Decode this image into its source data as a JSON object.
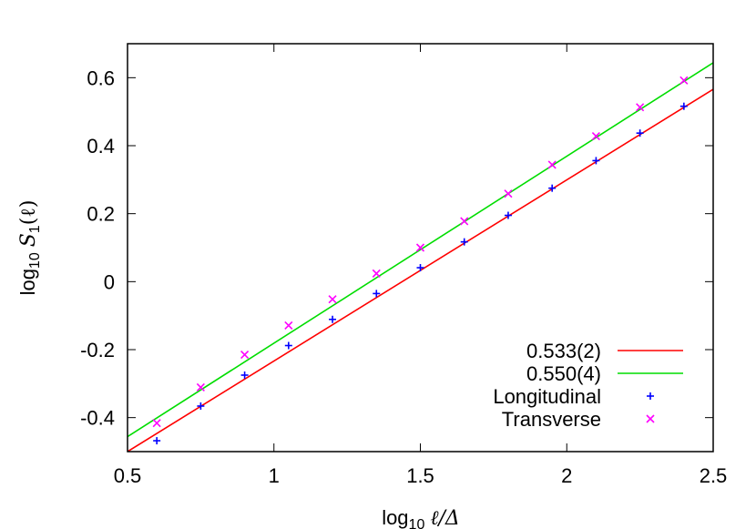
{
  "chart_data": {
    "type": "scatter",
    "xlabel": {
      "prefix": "log",
      "sub": "10",
      "expr": "ℓ/Δ"
    },
    "ylabel": {
      "prefix": "log",
      "sub": "10",
      "expr": "S",
      "expr_sub": "1",
      "expr_suffix": "(ℓ)"
    },
    "xlim": [
      0.5,
      2.5
    ],
    "ylim": [
      -0.5,
      0.7
    ],
    "x_ticks": [
      0.5,
      1,
      1.5,
      2,
      2.5
    ],
    "x_tick_labels": [
      "0.5",
      "1",
      "1.5",
      "2",
      "2.5"
    ],
    "y_ticks": [
      -0.4,
      -0.2,
      0,
      0.2,
      0.4,
      0.6
    ],
    "y_tick_labels": [
      "-0.4",
      "-0.2",
      "0",
      "0.2",
      "0.4",
      "0.6"
    ],
    "legend_position": "bottom-right",
    "grid": false,
    "fit_lines": [
      {
        "name": "0.533(2)",
        "color": "#ff0000",
        "x": [
          0.5,
          2.5
        ],
        "y": [
          -0.5,
          0.566
        ]
      },
      {
        "name": "0.550(4)",
        "color": "#00dd00",
        "x": [
          0.5,
          2.5
        ],
        "y": [
          -0.456,
          0.644
        ]
      }
    ],
    "series": [
      {
        "name": "Longitudinal",
        "marker": "plus",
        "color": "#0000ff",
        "x": [
          0.6,
          0.75,
          0.9,
          1.05,
          1.2,
          1.35,
          1.5,
          1.65,
          1.8,
          1.95,
          2.1,
          2.25,
          2.4
        ],
        "y": [
          -0.468,
          -0.366,
          -0.275,
          -0.188,
          -0.111,
          -0.035,
          0.041,
          0.117,
          0.195,
          0.275,
          0.356,
          0.437,
          0.516
        ]
      },
      {
        "name": "Transverse",
        "marker": "cross",
        "color": "#ff00ff",
        "x": [
          0.6,
          0.75,
          0.9,
          1.05,
          1.2,
          1.35,
          1.5,
          1.65,
          1.8,
          1.95,
          2.1,
          2.25,
          2.4
        ],
        "y": [
          -0.416,
          -0.311,
          -0.215,
          -0.129,
          -0.052,
          0.024,
          0.1,
          0.178,
          0.259,
          0.344,
          0.428,
          0.513,
          0.592
        ]
      }
    ]
  }
}
